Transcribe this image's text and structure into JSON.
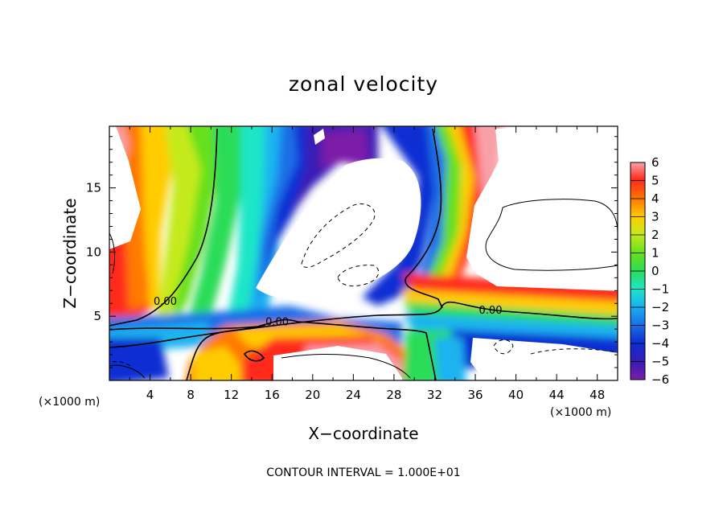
{
  "chart_data": {
    "type": "heatmap",
    "title": "zonal velocity",
    "xlabel": "X−coordinate",
    "ylabel": "Z−coordinate",
    "x_unit": "(×1000 m)",
    "z_unit": "(×1000 m)",
    "footer": "CONTOUR INTERVAL = 1.000E+01",
    "xlim": [
      0,
      50
    ],
    "ylim": [
      0,
      19.8
    ],
    "x_ticks": [
      "4",
      "8",
      "12",
      "16",
      "20",
      "24",
      "28",
      "32",
      "36",
      "40",
      "44",
      "48"
    ],
    "y_ticks": [
      "5",
      "10",
      "15"
    ],
    "colorbar": {
      "ticks": [
        "6",
        "5",
        "4",
        "3",
        "2",
        "1",
        "0",
        "−1",
        "−2",
        "−3",
        "−4",
        "−5",
        "−6"
      ],
      "range": [
        -6,
        6
      ],
      "colors": [
        "#7b1fa8",
        "#3a1bb4",
        "#0c2ed2",
        "#1a6ee6",
        "#1ab3f0",
        "#1ee6c8",
        "#2bdc58",
        "#66e01e",
        "#c4ea1c",
        "#ffcc00",
        "#ff7a00",
        "#ff2a1a",
        "#f8a0a8"
      ]
    },
    "contour_labels": [
      {
        "text": "0.00",
        "x": 5.5,
        "z": 6.2
      },
      {
        "text": "0.00",
        "x": 16.5,
        "z": 4.6
      },
      {
        "text": "0.00",
        "x": 37.5,
        "z": 5.5
      }
    ]
  }
}
